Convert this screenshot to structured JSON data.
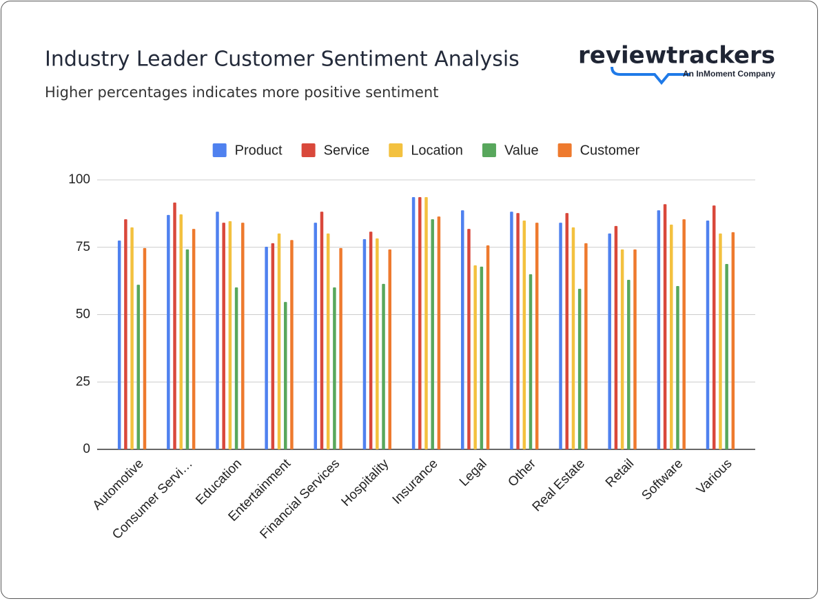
{
  "brand": {
    "name": "reviewtrackers",
    "tagline": "An InMoment Company"
  },
  "chart_data": {
    "type": "bar",
    "title": "Industry Leader Customer Sentiment Analysis",
    "subtitle": "Higher percentages indicates more positive sentiment",
    "categories": [
      "Automotive",
      "Consumer Servi…",
      "Education",
      "Entertainment",
      "Financial Services",
      "Hospitality",
      "Insurance",
      "Legal",
      "Other",
      "Real Estate",
      "Retail",
      "Software",
      "Various"
    ],
    "series": [
      {
        "name": "Product",
        "color": "#4f81ef",
        "values": [
          77.5,
          87,
          88.2,
          75.2,
          84.1,
          78,
          93.6,
          88.7,
          88.2,
          84.1,
          80.1,
          88.7,
          84.9
        ]
      },
      {
        "name": "Service",
        "color": "#d9483b",
        "values": [
          85.4,
          91.6,
          84.1,
          76.5,
          88.2,
          80.8,
          93.6,
          81.8,
          87.7,
          87.7,
          82.9,
          91,
          90.5
        ]
      },
      {
        "name": "Location",
        "color": "#f3c13f",
        "values": [
          82.4,
          87.2,
          84.7,
          80.1,
          80.1,
          78.3,
          93.6,
          68.3,
          84.9,
          82.4,
          74.2,
          83.4,
          80.1
        ]
      },
      {
        "name": "Value",
        "color": "#58a75c",
        "values": [
          61.1,
          74.2,
          60.1,
          54.7,
          60.1,
          61.4,
          85.4,
          67.8,
          65,
          59.6,
          62.9,
          60.6,
          68.8
        ]
      },
      {
        "name": "Customer",
        "color": "#ee7a2e",
        "values": [
          74.7,
          81.8,
          84.1,
          77.7,
          74.7,
          74.2,
          86.4,
          75.7,
          84.1,
          76.5,
          74.2,
          85.4,
          80.6
        ]
      }
    ],
    "ylim": [
      0,
      100
    ],
    "yticks": [
      0,
      25,
      50,
      75,
      100
    ],
    "grid": true,
    "legend": "top"
  }
}
